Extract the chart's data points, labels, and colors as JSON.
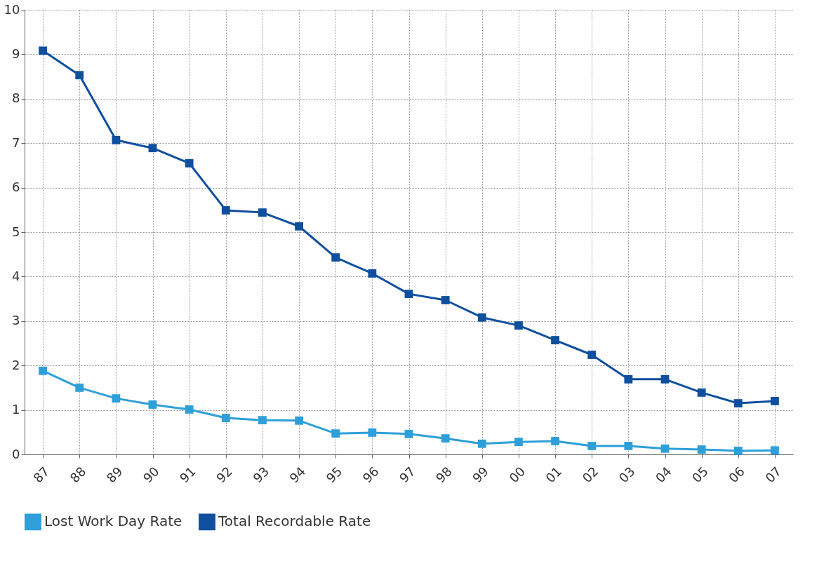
{
  "chart_data": {
    "type": "line",
    "categories": [
      "87",
      "88",
      "89",
      "90",
      "91",
      "92",
      "93",
      "94",
      "95",
      "96",
      "97",
      "98",
      "99",
      "00",
      "01",
      "02",
      "03",
      "04",
      "05",
      "06",
      "07"
    ],
    "series": [
      {
        "name": "Lost Work Day Rate",
        "color": "#2e9fd8",
        "values": [
          1.88,
          1.5,
          1.26,
          1.12,
          1.01,
          0.82,
          0.77,
          0.76,
          0.47,
          0.49,
          0.46,
          0.36,
          0.24,
          0.28,
          0.3,
          0.19,
          0.19,
          0.13,
          0.11,
          0.08,
          0.09
        ]
      },
      {
        "name": "Total Recordable Rate",
        "color": "#0f4f9e",
        "values": [
          9.08,
          8.53,
          7.07,
          6.89,
          6.55,
          5.49,
          5.44,
          5.13,
          4.43,
          4.07,
          3.61,
          3.47,
          3.08,
          2.9,
          2.57,
          2.24,
          1.69,
          1.69,
          1.39,
          1.15,
          1.2
        ]
      }
    ],
    "ylim": [
      0,
      10
    ],
    "yticks": [
      0,
      1,
      2,
      3,
      4,
      5,
      6,
      7,
      8,
      9,
      10
    ],
    "grid": true,
    "legend": "bottom",
    "marker": "square",
    "line_style": "solid"
  }
}
